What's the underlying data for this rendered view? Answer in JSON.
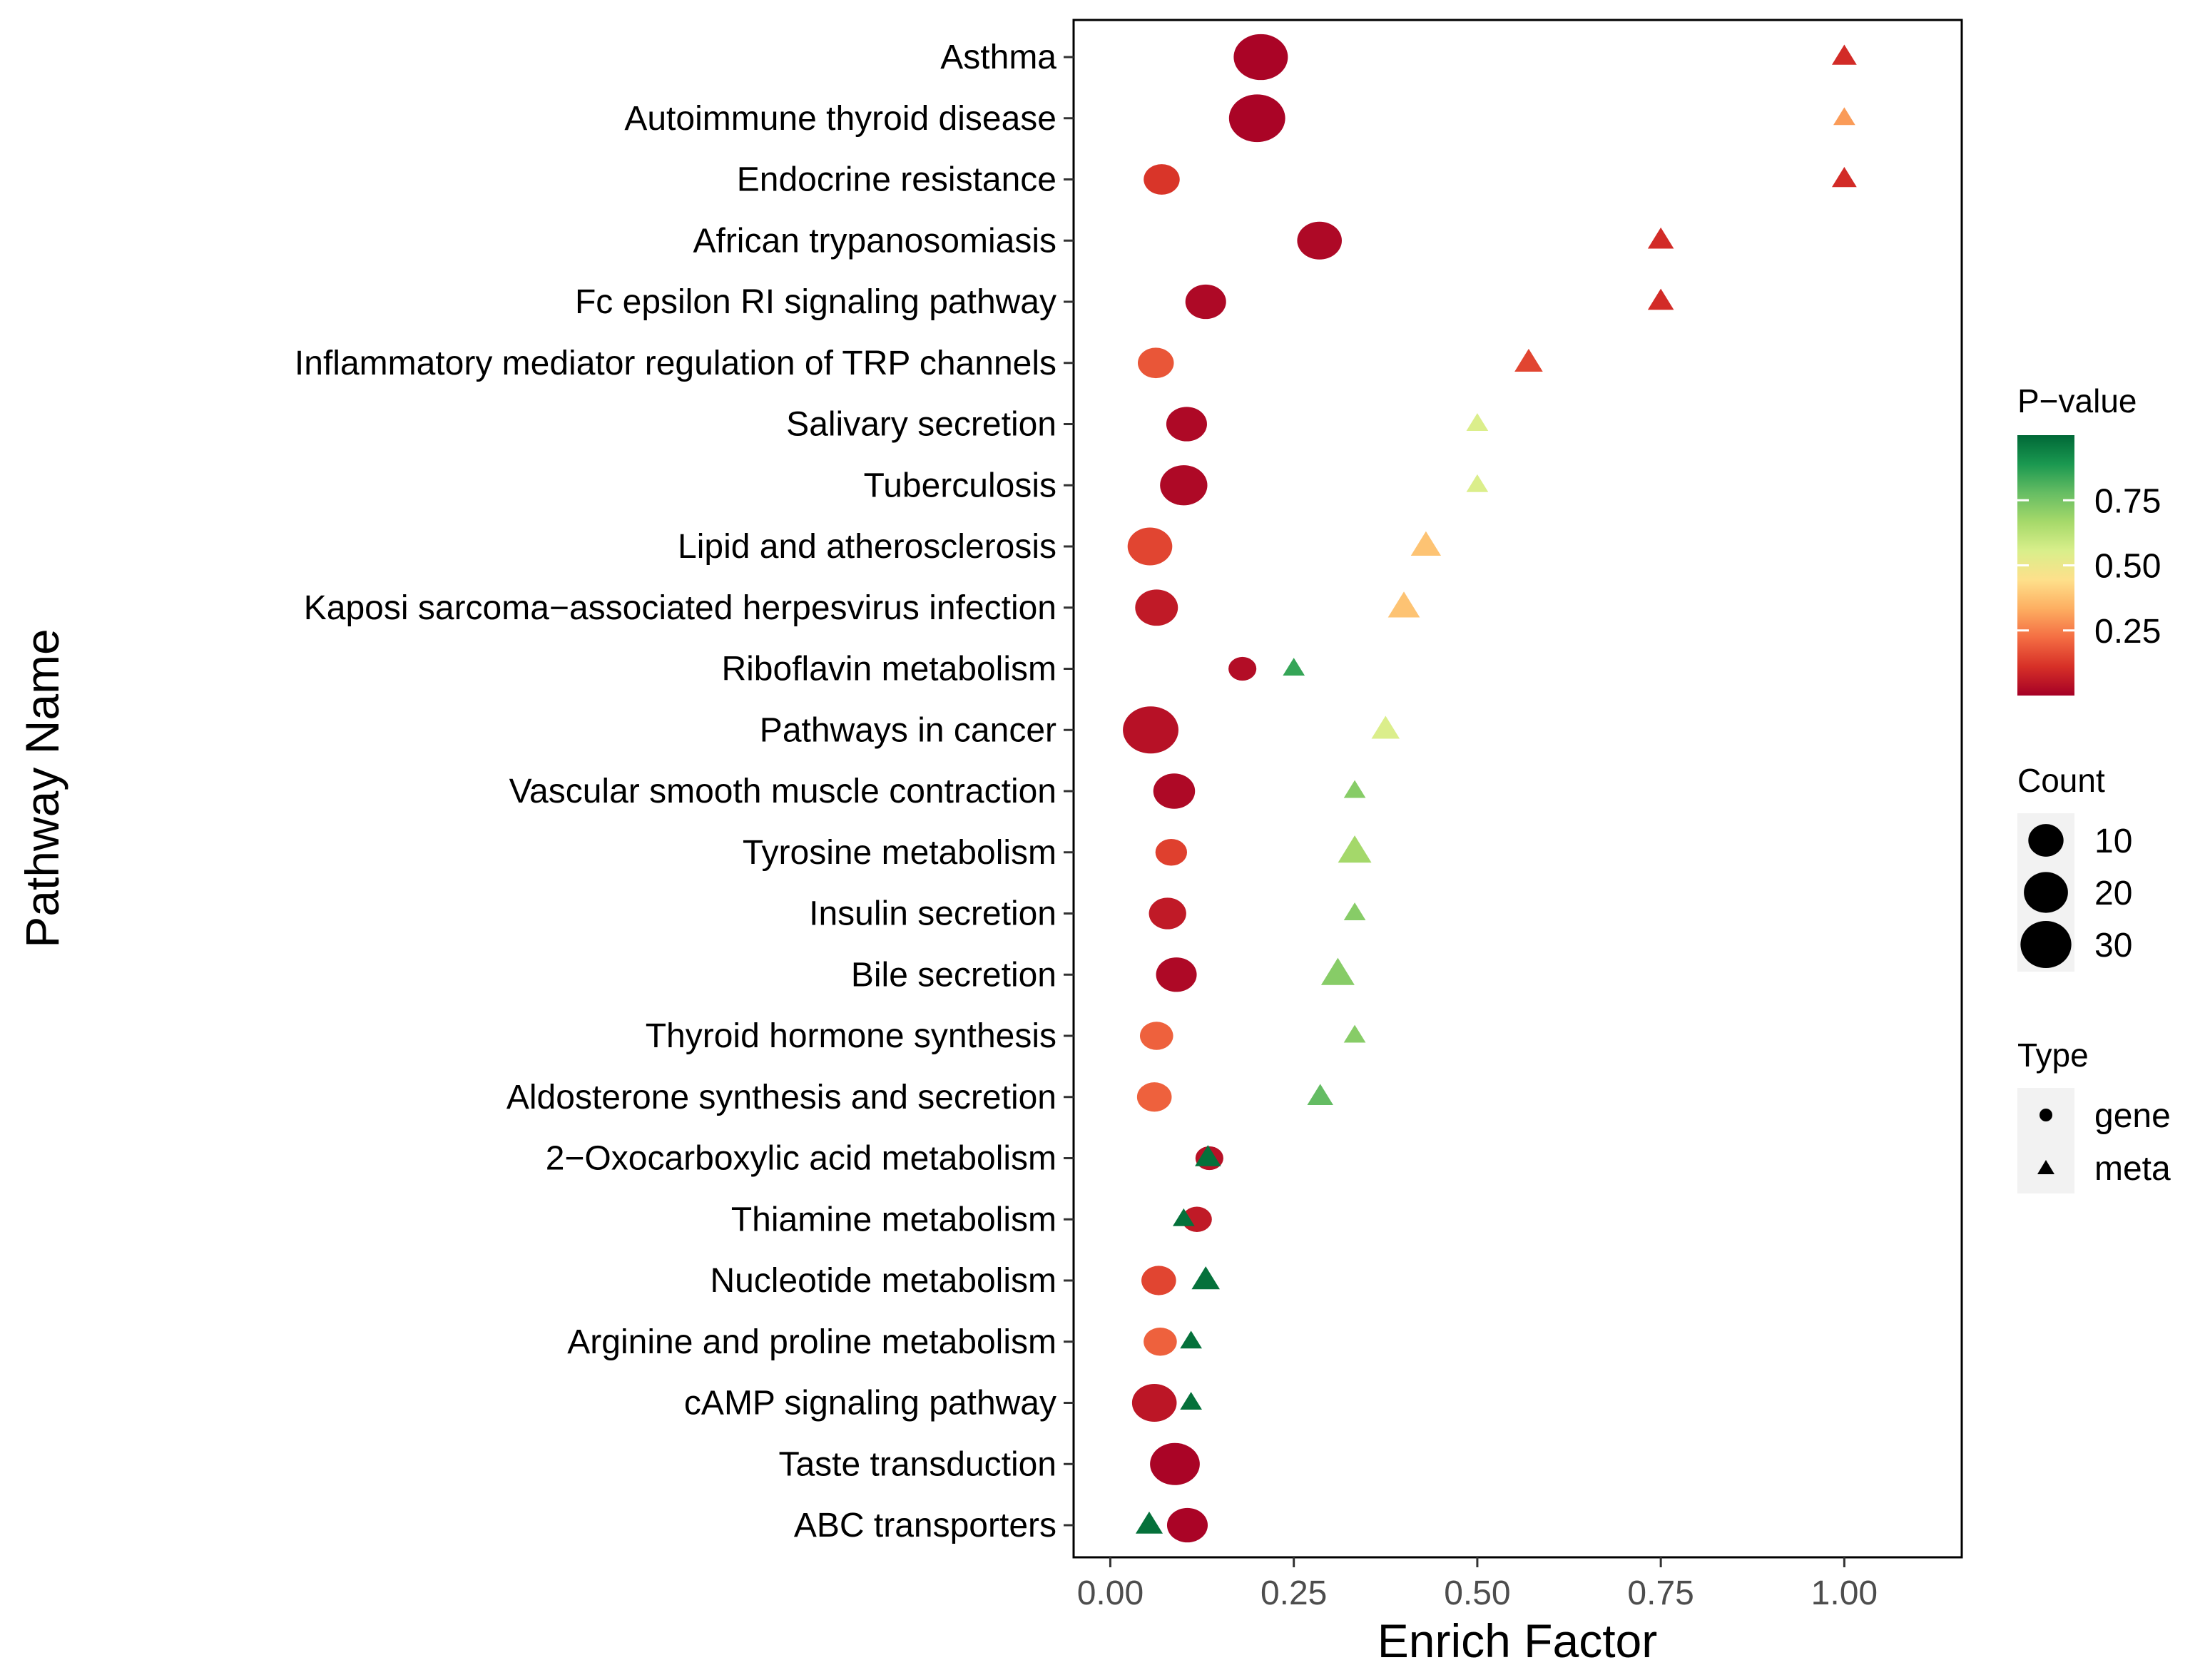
{
  "chart_data": {
    "type": "scatter",
    "subtype": "bubble",
    "title": "",
    "xlabel": "Enrich Factor",
    "ylabel": "Pathway Name",
    "xlim": [
      -0.05,
      1.16
    ],
    "xticks": [
      0.0,
      0.25,
      0.5,
      0.75,
      1.0
    ],
    "xtick_labels": [
      "0.00",
      "0.25",
      "0.50",
      "0.75",
      "1.00"
    ],
    "grid": false,
    "categories": [
      "Asthma",
      "Autoimmune thyroid disease",
      "Endocrine resistance",
      "African trypanosomiasis",
      "Fc epsilon RI signaling pathway",
      "Inflammatory mediator regulation of TRP channels",
      "Salivary secretion",
      "Tuberculosis",
      "Lipid and atherosclerosis",
      "Kaposi sarcoma−associated herpesvirus infection",
      "Riboflavin metabolism",
      "Pathways in cancer",
      "Vascular smooth muscle contraction",
      "Tyrosine metabolism",
      "Insulin secretion",
      "Bile secretion",
      "Thyroid hormone synthesis",
      "Aldosterone synthesis and secretion",
      "2−Oxocarboxylic acid metabolism",
      "Thiamine metabolism",
      "Nucleotide metabolism",
      "Arginine and proline metabolism",
      "cAMP signaling pathway",
      "Taste transduction",
      "ABC transporters"
    ],
    "series": [
      {
        "name": "gene",
        "shape": "circle",
        "points": [
          {
            "pathway": "Asthma",
            "x": 0.205,
            "count": 28,
            "pvalue": 0.01
          },
          {
            "pathway": "Autoimmune thyroid disease",
            "x": 0.2,
            "count": 31,
            "pvalue": 0.01
          },
          {
            "pathway": "Endocrine resistance",
            "x": 0.07,
            "count": 8,
            "pvalue": 0.12
          },
          {
            "pathway": "African trypanosomiasis",
            "x": 0.285,
            "count": 16,
            "pvalue": 0.02
          },
          {
            "pathway": "Fc epsilon RI signaling pathway",
            "x": 0.13,
            "count": 12,
            "pvalue": 0.02
          },
          {
            "pathway": "Inflammatory mediator regulation of TRP channels",
            "x": 0.062,
            "count": 8,
            "pvalue": 0.18
          },
          {
            "pathway": "Salivary secretion",
            "x": 0.104,
            "count": 12,
            "pvalue": 0.02
          },
          {
            "pathway": "Tuberculosis",
            "x": 0.1,
            "count": 19,
            "pvalue": 0.02
          },
          {
            "pathway": "Lipid and atherosclerosis",
            "x": 0.054,
            "count": 16,
            "pvalue": 0.15
          },
          {
            "pathway": "Kaposi sarcoma−associated herpesvirus infection",
            "x": 0.063,
            "count": 14,
            "pvalue": 0.06
          },
          {
            "pathway": "Riboflavin metabolism",
            "x": 0.18,
            "count": 3,
            "pvalue": 0.03
          },
          {
            "pathway": "Pathways in cancer",
            "x": 0.055,
            "count": 30,
            "pvalue": 0.04
          },
          {
            "pathway": "Vascular smooth muscle contraction",
            "x": 0.087,
            "count": 13,
            "pvalue": 0.02
          },
          {
            "pathway": "Tyrosine metabolism",
            "x": 0.083,
            "count": 5,
            "pvalue": 0.14
          },
          {
            "pathway": "Insulin secretion",
            "x": 0.078,
            "count": 9,
            "pvalue": 0.06
          },
          {
            "pathway": "Bile secretion",
            "x": 0.09,
            "count": 12,
            "pvalue": 0.02
          },
          {
            "pathway": "Thyroid hormone synthesis",
            "x": 0.063,
            "count": 6,
            "pvalue": 0.2
          },
          {
            "pathway": "Aldosterone synthesis and secretion",
            "x": 0.06,
            "count": 7,
            "pvalue": 0.2
          },
          {
            "pathway": "2−Oxocarboxylic acid metabolism",
            "x": 0.135,
            "count": 3,
            "pvalue": 0.04
          },
          {
            "pathway": "Thiamine metabolism",
            "x": 0.118,
            "count": 4,
            "pvalue": 0.06
          },
          {
            "pathway": "Nucleotide metabolism",
            "x": 0.066,
            "count": 7,
            "pvalue": 0.15
          },
          {
            "pathway": "Arginine and proline metabolism",
            "x": 0.068,
            "count": 6,
            "pvalue": 0.2
          },
          {
            "pathway": "cAMP signaling pathway",
            "x": 0.06,
            "count": 16,
            "pvalue": 0.05
          },
          {
            "pathway": "Taste transduction",
            "x": 0.088,
            "count": 22,
            "pvalue": 0.01
          },
          {
            "pathway": "ABC transporters",
            "x": 0.105,
            "count": 12,
            "pvalue": 0.01
          }
        ]
      },
      {
        "name": "meta",
        "shape": "triangle",
        "points": [
          {
            "pathway": "Asthma",
            "x": 1.0,
            "count": 5,
            "pvalue": 0.1
          },
          {
            "pathway": "Autoimmune thyroid disease",
            "x": 1.0,
            "count": 3,
            "pvalue": 0.3
          },
          {
            "pathway": "Endocrine resistance",
            "x": 1.0,
            "count": 5,
            "pvalue": 0.1
          },
          {
            "pathway": "African trypanosomiasis",
            "x": 0.75,
            "count": 6,
            "pvalue": 0.1
          },
          {
            "pathway": "Fc epsilon RI signaling pathway",
            "x": 0.75,
            "count": 6,
            "pvalue": 0.1
          },
          {
            "pathway": "Inflammatory mediator regulation of TRP channels",
            "x": 0.57,
            "count": 8,
            "pvalue": 0.15
          },
          {
            "pathway": "Salivary secretion",
            "x": 0.5,
            "count": 3,
            "pvalue": 0.55
          },
          {
            "pathway": "Tuberculosis",
            "x": 0.5,
            "count": 3,
            "pvalue": 0.55
          },
          {
            "pathway": "Lipid and atherosclerosis",
            "x": 0.43,
            "count": 10,
            "pvalue": 0.38
          },
          {
            "pathway": "Kaposi sarcoma−associated herpesvirus infection",
            "x": 0.4,
            "count": 12,
            "pvalue": 0.38
          },
          {
            "pathway": "Riboflavin metabolism",
            "x": 0.25,
            "count": 3,
            "pvalue": 0.85
          },
          {
            "pathway": "Pathways in cancer",
            "x": 0.375,
            "count": 8,
            "pvalue": 0.55
          },
          {
            "pathway": "Vascular smooth muscle contraction",
            "x": 0.333,
            "count": 3,
            "pvalue": 0.72
          },
          {
            "pathway": "Tyrosine metabolism",
            "x": 0.333,
            "count": 14,
            "pvalue": 0.67
          },
          {
            "pathway": "Insulin secretion",
            "x": 0.333,
            "count": 3,
            "pvalue": 0.72
          },
          {
            "pathway": "Bile secretion",
            "x": 0.31,
            "count": 14,
            "pvalue": 0.72
          },
          {
            "pathway": "Thyroid hormone synthesis",
            "x": 0.333,
            "count": 3,
            "pvalue": 0.72
          },
          {
            "pathway": "Aldosterone synthesis and secretion",
            "x": 0.286,
            "count": 6,
            "pvalue": 0.78
          },
          {
            "pathway": "2−Oxocarboxylic acid metabolism",
            "x": 0.133,
            "count": 6,
            "pvalue": 0.98
          },
          {
            "pathway": "Thiamine metabolism",
            "x": 0.1,
            "count": 3,
            "pvalue": 0.98
          },
          {
            "pathway": "Nucleotide metabolism",
            "x": 0.13,
            "count": 8,
            "pvalue": 0.98
          },
          {
            "pathway": "Arginine and proline metabolism",
            "x": 0.11,
            "count": 3,
            "pvalue": 0.98
          },
          {
            "pathway": "cAMP signaling pathway",
            "x": 0.11,
            "count": 3,
            "pvalue": 0.98
          },
          {
            "pathway": "ABC transporters",
            "x": 0.053,
            "count": 7,
            "pvalue": 0.98
          }
        ]
      }
    ],
    "color_scale": {
      "title": "P−value",
      "stops": [
        "#a50026",
        "#d73027",
        "#f46d43",
        "#fdae61",
        "#fee08b",
        "#d9ef8b",
        "#a6d96a",
        "#66bd63",
        "#1a9850",
        "#006837"
      ],
      "ticks": [
        0.25,
        0.5,
        0.75
      ],
      "tick_labels": [
        "0.25",
        "0.50",
        "0.75"
      ],
      "range": [
        0.0,
        1.0
      ]
    },
    "size_legend": {
      "title": "Count",
      "values": [
        10,
        20,
        30
      ],
      "labels": [
        "10",
        "20",
        "30"
      ]
    },
    "type_legend": {
      "title": "Type",
      "entries": [
        {
          "label": "gene",
          "shape": "circle"
        },
        {
          "label": "meta",
          "shape": "triangle"
        }
      ]
    }
  }
}
